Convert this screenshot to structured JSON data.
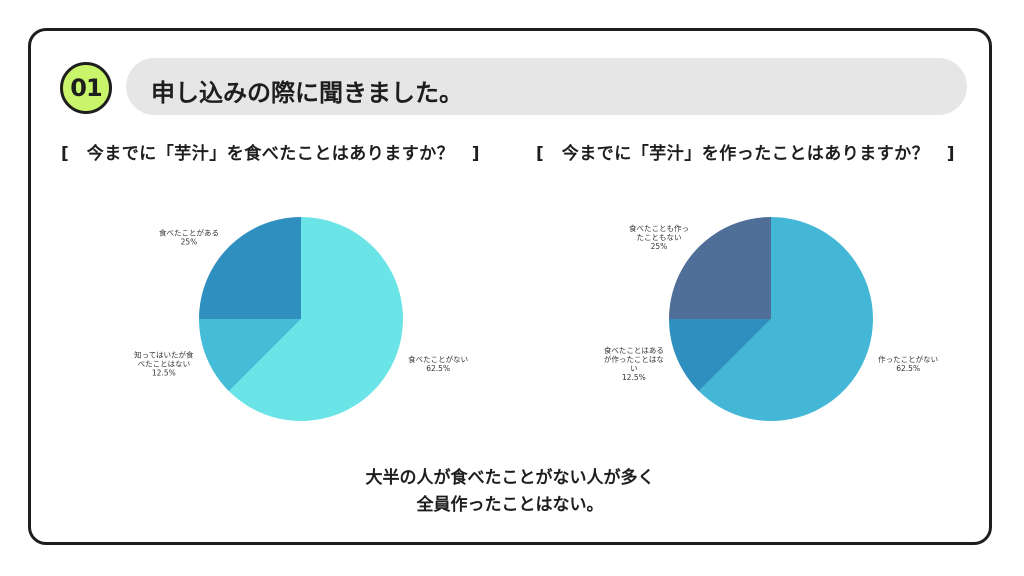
{
  "header": {
    "badge": "01",
    "title": "申し込みの際に聞きました。"
  },
  "questions": {
    "left": "[　今までに「芋汁」を食べたことはありますか？　]",
    "right": "[　今までに「芋汁」を作ったことはありますか？　]"
  },
  "summary": {
    "line1": "大半の人が食べたことがない人が多く",
    "line2": "全員作ったことはない。"
  },
  "chart_data": [
    {
      "type": "pie",
      "title": "",
      "slices": [
        {
          "label": [
            "食べたことがない"
          ],
          "value": 62.5,
          "pct": "62.5%",
          "color": "#6be4e8"
        },
        {
          "label": [
            "知ってはいたが食",
            "べたことはない"
          ],
          "value": 12.5,
          "pct": "12.5%",
          "color": "#45bcd8"
        },
        {
          "label": [
            "食べたことがある"
          ],
          "value": 25,
          "pct": "25%",
          "color": "#2f8fbf"
        }
      ]
    },
    {
      "type": "pie",
      "title": "",
      "slices": [
        {
          "label": [
            "作ったことがない"
          ],
          "value": 62.5,
          "pct": "62.5%",
          "color": "#45b7d6"
        },
        {
          "label": [
            "食べたことはある",
            "が作ったことはな",
            "い"
          ],
          "value": 12.5,
          "pct": "12.5%",
          "color": "#2f8fbf"
        },
        {
          "label": [
            "食べたことも作っ",
            "たこともない"
          ],
          "value": 25,
          "pct": "25%",
          "color": "#4f6e98"
        }
      ]
    }
  ]
}
